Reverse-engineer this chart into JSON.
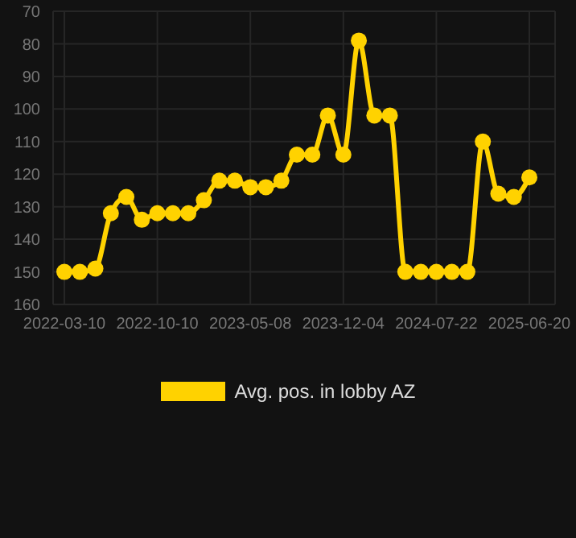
{
  "chart_data": {
    "type": "line",
    "categories": [
      "2022-03-10",
      null,
      null,
      null,
      null,
      null,
      "2022-10-10",
      null,
      null,
      null,
      null,
      null,
      "2023-05-08",
      null,
      null,
      null,
      null,
      null,
      "2023-12-04",
      null,
      null,
      null,
      null,
      null,
      "2024-07-22",
      null,
      null,
      null,
      null,
      null,
      "2025-06-20"
    ],
    "series": [
      {
        "name": "Avg. pos. in lobby AZ",
        "color": "#ffd200",
        "values": [
          150,
          150,
          149,
          132,
          127,
          134,
          132,
          132,
          132,
          128,
          122,
          122,
          124,
          124,
          122,
          114,
          114,
          102,
          114,
          79,
          102,
          102,
          150,
          150,
          150,
          150,
          150,
          110,
          126,
          127,
          121
        ]
      }
    ],
    "ylim": [
      160,
      70
    ],
    "yticks": [
      70,
      80,
      90,
      100,
      110,
      120,
      130,
      140,
      150,
      160
    ],
    "grid": true,
    "legend": "bottom",
    "marker": "circle",
    "line_style": "solid"
  }
}
